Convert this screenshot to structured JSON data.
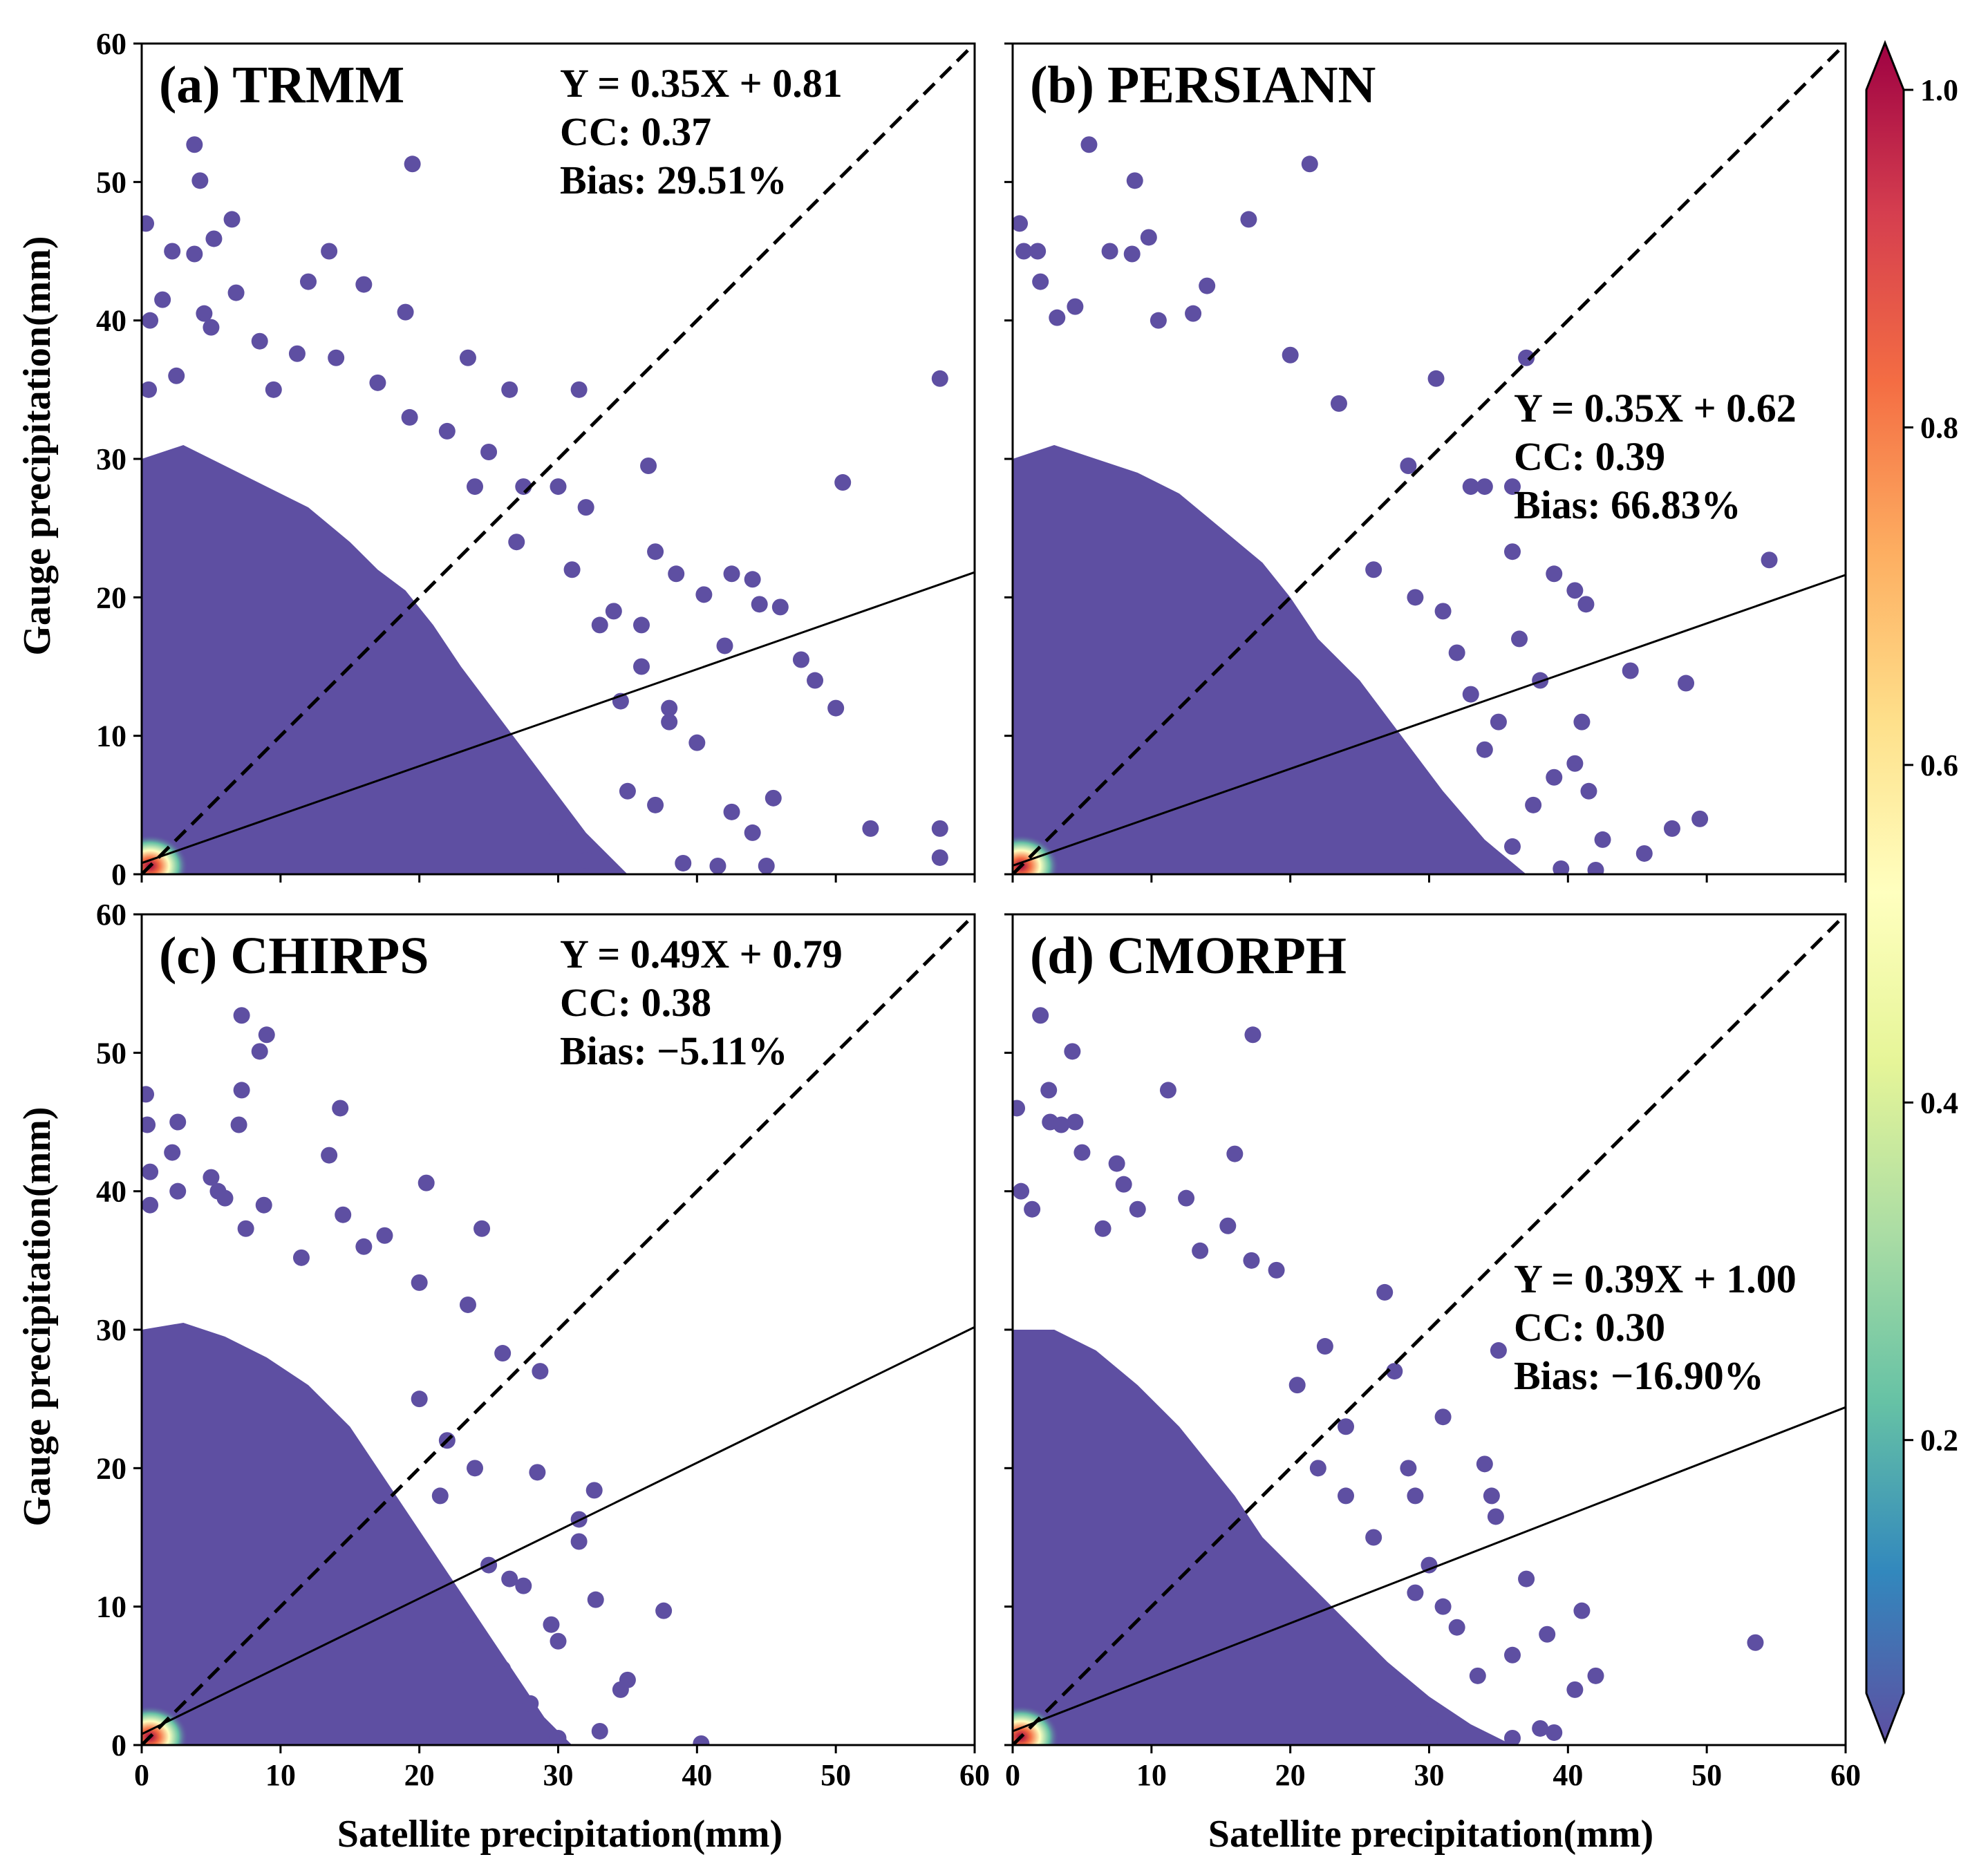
{
  "colors": {
    "scatter": "#5e4fa2",
    "dense_core": "#f46d43",
    "colorbar_stops": [
      "#5e4fa2",
      "#3288bd",
      "#66c2a5",
      "#abdda4",
      "#e6f598",
      "#ffffbf",
      "#fee08b",
      "#fdae61",
      "#f46d43",
      "#d53e4f",
      "#9e0142"
    ]
  },
  "axes": {
    "xlabel": "Satellite precipitation(mm)",
    "ylabel": "Gauge precipitation(mm)",
    "xlim": [
      0,
      60
    ],
    "ylim": [
      0,
      60
    ],
    "ticks": [
      "0",
      "10",
      "20",
      "30",
      "40",
      "50",
      "60"
    ]
  },
  "colorbar": {
    "ticks": [
      "0.2",
      "0.4",
      "0.6",
      "0.8",
      "1.0"
    ],
    "tick_values": [
      0.2,
      0.4,
      0.6,
      0.8,
      1.0
    ],
    "range": [
      0.05,
      1.0
    ]
  },
  "chart_data": [
    {
      "type": "scatter",
      "title": "(a) TRMM",
      "equation": "Y = 0.35X + 0.81",
      "cc": "CC: 0.37",
      "bias": "Bias: 29.51%",
      "slope": 0.35,
      "intercept": 0.81,
      "stats_position": "top-right",
      "outliers": [
        [
          0.3,
          47
        ],
        [
          0.6,
          40
        ],
        [
          0.5,
          35
        ],
        [
          1.5,
          41.5
        ],
        [
          2.2,
          45
        ],
        [
          2.5,
          36
        ],
        [
          3.8,
          44.8
        ],
        [
          3.8,
          52.7
        ],
        [
          4.2,
          50.1
        ],
        [
          4.5,
          40.5
        ],
        [
          5,
          39.5
        ],
        [
          5.2,
          45.9
        ],
        [
          6.5,
          47.3
        ],
        [
          6.8,
          42
        ],
        [
          8.5,
          38.5
        ],
        [
          9.5,
          35
        ],
        [
          11.2,
          37.6
        ],
        [
          12,
          42.8
        ],
        [
          13.5,
          45
        ],
        [
          14,
          37.3
        ],
        [
          16,
          42.6
        ],
        [
          19,
          40.6
        ],
        [
          19.5,
          51.3
        ],
        [
          19.3,
          33
        ],
        [
          22,
          32
        ],
        [
          23.5,
          37.3
        ],
        [
          25,
          30.5
        ],
        [
          27.5,
          28
        ],
        [
          30,
          28
        ],
        [
          32,
          26.5
        ],
        [
          36.5,
          29.5
        ],
        [
          37,
          23.3
        ],
        [
          38.5,
          21.7
        ],
        [
          40.5,
          20.2
        ],
        [
          42.5,
          21.7
        ],
        [
          44,
          21.3
        ],
        [
          44.5,
          19.5
        ],
        [
          46,
          19.3
        ],
        [
          47.5,
          15.5
        ],
        [
          48.5,
          14
        ],
        [
          50,
          12
        ],
        [
          50.5,
          28.3
        ],
        [
          57.5,
          35.8
        ],
        [
          36,
          18
        ],
        [
          34,
          19
        ],
        [
          38,
          12
        ],
        [
          40,
          9.5
        ],
        [
          42,
          16.5
        ],
        [
          42.5,
          4.5
        ],
        [
          44,
          3
        ],
        [
          45.5,
          5.5
        ],
        [
          45,
          0.6
        ],
        [
          52.5,
          3.3
        ],
        [
          57.5,
          3.3
        ],
        [
          57.5,
          1.2
        ],
        [
          41.5,
          0.6
        ],
        [
          38,
          11
        ],
        [
          37,
          5
        ],
        [
          36,
          15
        ],
        [
          34.5,
          12.5
        ],
        [
          31.5,
          35
        ],
        [
          26.5,
          35
        ],
        [
          17,
          35.5
        ],
        [
          24,
          28
        ],
        [
          27,
          24
        ],
        [
          31,
          22
        ],
        [
          33,
          18
        ],
        [
          35,
          6
        ],
        [
          39,
          0.8
        ],
        [
          30,
          3
        ],
        [
          32,
          1
        ]
      ],
      "bulk": [
        [
          0,
          30
        ],
        [
          3,
          31
        ],
        [
          6,
          29.5
        ],
        [
          9,
          28
        ],
        [
          12,
          26.5
        ],
        [
          15,
          24
        ],
        [
          17,
          22
        ],
        [
          19,
          20.5
        ],
        [
          21,
          18
        ],
        [
          23,
          15
        ],
        [
          26,
          11
        ],
        [
          29,
          7
        ],
        [
          32,
          3
        ],
        [
          35,
          0
        ]
      ]
    },
    {
      "type": "scatter",
      "title": "(b) PERSIANN",
      "equation": "Y = 0.35X + 0.62",
      "cc": "CC: 0.39",
      "bias": "Bias: 66.83%",
      "slope": 0.35,
      "intercept": 0.62,
      "stats_position": "right",
      "outliers": [
        [
          0.5,
          47
        ],
        [
          0.8,
          45
        ],
        [
          1.8,
          45
        ],
        [
          2,
          42.8
        ],
        [
          3.2,
          40.2
        ],
        [
          4.5,
          41
        ],
        [
          5.5,
          52.7
        ],
        [
          7,
          45
        ],
        [
          8.6,
          44.8
        ],
        [
          8.8,
          50.1
        ],
        [
          9.8,
          46
        ],
        [
          10.5,
          40
        ],
        [
          13,
          40.5
        ],
        [
          14,
          42.5
        ],
        [
          17,
          47.3
        ],
        [
          21.4,
          51.3
        ],
        [
          20,
          37.5
        ],
        [
          23.5,
          34
        ],
        [
          28.5,
          29.5
        ],
        [
          30.5,
          35.8
        ],
        [
          33,
          28
        ],
        [
          34,
          28
        ],
        [
          36,
          28
        ],
        [
          37,
          37.3
        ],
        [
          36,
          23.3
        ],
        [
          39,
          21.7
        ],
        [
          40.5,
          20.5
        ],
        [
          41.3,
          19.5
        ],
        [
          44.5,
          14.7
        ],
        [
          47.5,
          3.3
        ],
        [
          48.5,
          13.8
        ],
        [
          49.5,
          4
        ],
        [
          54.5,
          22.7
        ],
        [
          45.5,
          1.5
        ],
        [
          42.5,
          2.5
        ],
        [
          42,
          0.3
        ],
        [
          39.5,
          0.4
        ],
        [
          41,
          11
        ],
        [
          41.5,
          6
        ],
        [
          39,
          7
        ],
        [
          40.5,
          8
        ],
        [
          36.5,
          17
        ],
        [
          38,
          14
        ],
        [
          35,
          11
        ],
        [
          37.5,
          5
        ],
        [
          33,
          13
        ],
        [
          32,
          16
        ],
        [
          29,
          20
        ],
        [
          26,
          22
        ],
        [
          31,
          19
        ],
        [
          34,
          9
        ],
        [
          36,
          2
        ]
      ],
      "bulk": [
        [
          0,
          30
        ],
        [
          3,
          31
        ],
        [
          6,
          30
        ],
        [
          9,
          29
        ],
        [
          12,
          27.5
        ],
        [
          15,
          25
        ],
        [
          18,
          22.5
        ],
        [
          20,
          20
        ],
        [
          22,
          17
        ],
        [
          25,
          14
        ],
        [
          28,
          10
        ],
        [
          31,
          6
        ],
        [
          34,
          2.5
        ],
        [
          37,
          0
        ]
      ]
    },
    {
      "type": "scatter",
      "title": "(c) CHIRPS",
      "equation": "Y = 0.49X + 0.79",
      "cc": "CC: 0.38",
      "bias": "Bias: −5.11%",
      "slope": 0.49,
      "intercept": 0.79,
      "stats_position": "top-right",
      "outliers": [
        [
          0.3,
          47
        ],
        [
          0.4,
          44.8
        ],
        [
          0.6,
          41.4
        ],
        [
          0.6,
          39
        ],
        [
          2.2,
          42.8
        ],
        [
          2.6,
          45
        ],
        [
          2.6,
          40
        ],
        [
          5,
          41
        ],
        [
          5.5,
          40
        ],
        [
          6,
          39.5
        ],
        [
          7.2,
          52.7
        ],
        [
          7.2,
          47.3
        ],
        [
          7,
          44.8
        ],
        [
          8.5,
          50.1
        ],
        [
          9,
          51.3
        ],
        [
          8.8,
          39
        ],
        [
          7.5,
          37.3
        ],
        [
          11.5,
          35.2
        ],
        [
          13.5,
          42.6
        ],
        [
          14.3,
          46
        ],
        [
          14.5,
          38.3
        ],
        [
          16,
          36
        ],
        [
          17.5,
          36.8
        ],
        [
          20.5,
          40.6
        ],
        [
          20,
          33.4
        ],
        [
          23.5,
          31.8
        ],
        [
          24.5,
          37.3
        ],
        [
          26,
          28.3
        ],
        [
          28.7,
          27
        ],
        [
          28.5,
          19.7
        ],
        [
          31.5,
          16.3
        ],
        [
          32.6,
          18.4
        ],
        [
          32.7,
          10.5
        ],
        [
          31.5,
          14.7
        ],
        [
          34.5,
          4
        ],
        [
          35,
          4.7
        ],
        [
          37.6,
          9.7
        ],
        [
          40.3,
          0.1
        ],
        [
          33,
          1
        ],
        [
          29.5,
          8.7
        ],
        [
          30,
          7.5
        ],
        [
          27.5,
          11.5
        ],
        [
          25,
          13
        ],
        [
          26.5,
          12
        ],
        [
          22,
          22
        ],
        [
          20,
          25
        ],
        [
          21.5,
          18
        ],
        [
          24,
          20
        ],
        [
          23,
          8
        ],
        [
          26,
          5.5
        ],
        [
          28,
          3
        ],
        [
          30,
          0.5
        ]
      ],
      "bulk": [
        [
          0,
          30
        ],
        [
          3,
          30.5
        ],
        [
          6,
          29.5
        ],
        [
          9,
          28
        ],
        [
          12,
          26
        ],
        [
          15,
          23
        ],
        [
          17,
          20
        ],
        [
          19,
          17
        ],
        [
          21,
          14
        ],
        [
          23,
          11
        ],
        [
          25,
          8
        ],
        [
          27,
          5
        ],
        [
          29,
          2
        ],
        [
          31,
          0
        ]
      ]
    },
    {
      "type": "scatter",
      "title": "(d) CMORPH",
      "equation": "Y = 0.39X + 1.00",
      "cc": "CC: 0.30",
      "bias": "Bias: −16.90%",
      "slope": 0.39,
      "intercept": 1.0,
      "stats_position": "right",
      "outliers": [
        [
          0.3,
          46
        ],
        [
          0.6,
          40
        ],
        [
          1.4,
          38.7
        ],
        [
          2,
          52.7
        ],
        [
          2.6,
          47.3
        ],
        [
          2.7,
          45
        ],
        [
          3.5,
          44.8
        ],
        [
          4.3,
          50.1
        ],
        [
          4.5,
          45
        ],
        [
          5,
          42.8
        ],
        [
          6.5,
          37.3
        ],
        [
          7.5,
          42
        ],
        [
          8,
          40.5
        ],
        [
          9,
          38.7
        ],
        [
          11.2,
          47.3
        ],
        [
          12.5,
          39.5
        ],
        [
          13.5,
          35.7
        ],
        [
          15.5,
          37.5
        ],
        [
          16,
          42.7
        ],
        [
          17.3,
          51.3
        ],
        [
          17.2,
          35
        ],
        [
          19,
          34.3
        ],
        [
          20.5,
          26
        ],
        [
          22.5,
          28.8
        ],
        [
          24,
          23
        ],
        [
          26.8,
          32.7
        ],
        [
          27.5,
          27
        ],
        [
          28.5,
          20
        ],
        [
          29,
          18
        ],
        [
          30,
          13
        ],
        [
          31,
          23.7
        ],
        [
          32,
          8.5
        ],
        [
          33.5,
          5
        ],
        [
          34,
          20.3
        ],
        [
          34.5,
          18
        ],
        [
          34.8,
          16.5
        ],
        [
          35,
          28.5
        ],
        [
          37,
          12
        ],
        [
          36,
          6.5
        ],
        [
          38.5,
          8
        ],
        [
          40.5,
          4
        ],
        [
          41,
          9.7
        ],
        [
          42,
          5
        ],
        [
          53.5,
          7.4
        ],
        [
          38,
          1.2
        ],
        [
          39,
          0.9
        ],
        [
          36,
          0.5
        ],
        [
          31,
          10
        ],
        [
          29,
          11
        ],
        [
          26,
          15
        ],
        [
          24,
          18
        ],
        [
          22,
          20
        ],
        [
          27,
          3
        ],
        [
          30,
          1.5
        ]
      ],
      "bulk": [
        [
          0,
          30
        ],
        [
          3,
          30
        ],
        [
          6,
          28.5
        ],
        [
          9,
          26
        ],
        [
          12,
          23
        ],
        [
          14,
          20.5
        ],
        [
          16,
          18
        ],
        [
          18,
          15
        ],
        [
          21,
          12
        ],
        [
          24,
          9
        ],
        [
          27,
          6
        ],
        [
          30,
          3.5
        ],
        [
          33,
          1.5
        ],
        [
          36,
          0
        ]
      ]
    }
  ]
}
